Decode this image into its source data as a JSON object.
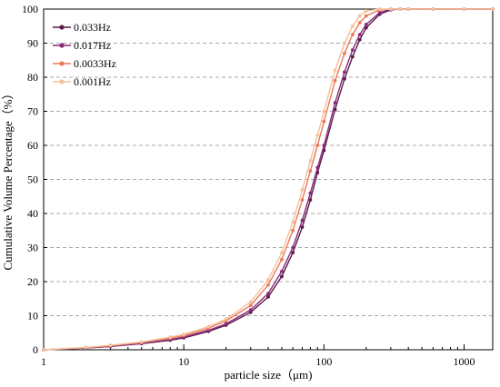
{
  "chart_data": {
    "type": "line",
    "xlabel": "particle size（μm)",
    "ylabel": "Cumulative Volume Percentage（%）",
    "xscale": "log",
    "xlim": [
      1,
      1600
    ],
    "ylim": [
      0,
      100
    ],
    "x_ticks": [
      "1",
      "10",
      "100",
      "1000"
    ],
    "y_ticks": [
      "0",
      "10",
      "20",
      "30",
      "40",
      "50",
      "60",
      "70",
      "80",
      "90",
      "100"
    ],
    "grid": "horizontal dashed",
    "legend_position": "top-left",
    "series": [
      {
        "name": "0.033Hz",
        "color": "#5a1a48",
        "x": [
          1,
          2,
          3,
          5,
          8,
          10,
          15,
          20,
          30,
          40,
          50,
          60,
          70,
          80,
          90,
          100,
          120,
          140,
          160,
          180,
          200,
          250,
          300,
          350,
          400,
          600,
          1000,
          1600
        ],
        "y": [
          0,
          0.5,
          1.0,
          1.8,
          2.8,
          3.5,
          5.4,
          7.2,
          11.0,
          15.5,
          21.5,
          28.5,
          36.0,
          44.0,
          52.0,
          58.5,
          70.5,
          79.5,
          86.0,
          91.0,
          94.5,
          98.5,
          99.8,
          100,
          100,
          100,
          100,
          100
        ]
      },
      {
        "name": "0.017Hz",
        "color": "#8a2a7a",
        "x": [
          1,
          2,
          3,
          5,
          8,
          10,
          15,
          20,
          30,
          40,
          50,
          60,
          70,
          80,
          90,
          100,
          120,
          140,
          160,
          180,
          200,
          250,
          300,
          350,
          400,
          600,
          1000,
          1600
        ],
        "y": [
          0,
          0.5,
          1.0,
          1.9,
          3.0,
          3.7,
          5.7,
          7.6,
          11.7,
          16.5,
          23.0,
          30.0,
          38.0,
          46.0,
          53.5,
          60.0,
          72.5,
          81.5,
          88.0,
          92.5,
          95.5,
          99.0,
          100,
          100,
          100,
          100,
          100,
          100
        ]
      },
      {
        "name": "0.0033Hz",
        "color": "#e8795a",
        "x": [
          1,
          2,
          3,
          5,
          8,
          10,
          15,
          20,
          30,
          40,
          50,
          60,
          70,
          80,
          90,
          100,
          120,
          140,
          160,
          180,
          200,
          250,
          300,
          350,
          400,
          600,
          1000,
          1600
        ],
        "y": [
          0,
          0.6,
          1.2,
          2.1,
          3.4,
          4.2,
          6.3,
          8.5,
          13.0,
          19.0,
          26.5,
          35.0,
          44.0,
          52.5,
          60.0,
          67.0,
          79.0,
          87.0,
          92.5,
          96.0,
          98.0,
          99.8,
          100,
          100,
          100,
          100,
          100,
          100
        ]
      },
      {
        "name": "0.001Hz",
        "color": "#f5c09a",
        "x": [
          1,
          2,
          3,
          5,
          8,
          10,
          15,
          20,
          30,
          40,
          50,
          60,
          70,
          80,
          90,
          100,
          120,
          140,
          160,
          180,
          200,
          250,
          300,
          350,
          400,
          600,
          1000,
          1600
        ],
        "y": [
          0,
          0.7,
          1.3,
          2.3,
          3.7,
          4.5,
          6.8,
          9.0,
          14.0,
          20.5,
          28.5,
          37.5,
          47.0,
          55.5,
          63.0,
          70.0,
          82.0,
          90.0,
          95.0,
          98.0,
          99.5,
          100,
          100,
          100,
          100,
          100,
          100,
          100
        ]
      }
    ]
  }
}
